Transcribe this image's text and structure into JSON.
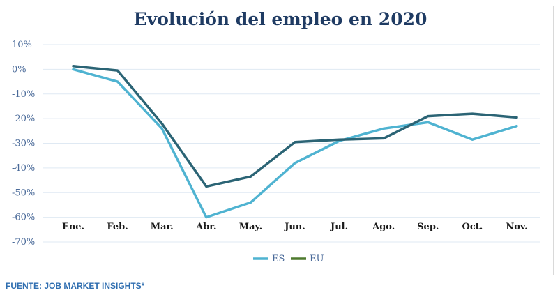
{
  "chart_data": {
    "type": "line",
    "title": "Evolución del empleo en 2020",
    "categories": [
      "Ene.",
      "Feb.",
      "Mar.",
      "Abr.",
      "May.",
      "Jun.",
      "Jul.",
      "Ago.",
      "Sep.",
      "Oct.",
      "Nov."
    ],
    "y_ticks": [
      "10%",
      "0%",
      "-10%",
      "-20%",
      "-30%",
      "-40%",
      "-50%",
      "-60%",
      "-70%"
    ],
    "ylim": [
      -70,
      10
    ],
    "grid": true,
    "legend_position": "bottom",
    "series": [
      {
        "name": "ES",
        "color": "#4fb3d1",
        "values": [
          0,
          -5,
          -24,
          -60,
          -54,
          -38,
          -29,
          -24,
          -21.5,
          -28.5,
          -23
        ]
      },
      {
        "name": "EU",
        "color": "#2b6475",
        "legend_color": "#4e7a2e",
        "values": [
          1.3,
          -0.5,
          -22,
          -47.5,
          -43.5,
          -29.5,
          -28.5,
          -28,
          -19,
          -18,
          -19.5
        ]
      }
    ]
  },
  "source_note": "FUENTE: JOB MARKET INSIGHTS*"
}
